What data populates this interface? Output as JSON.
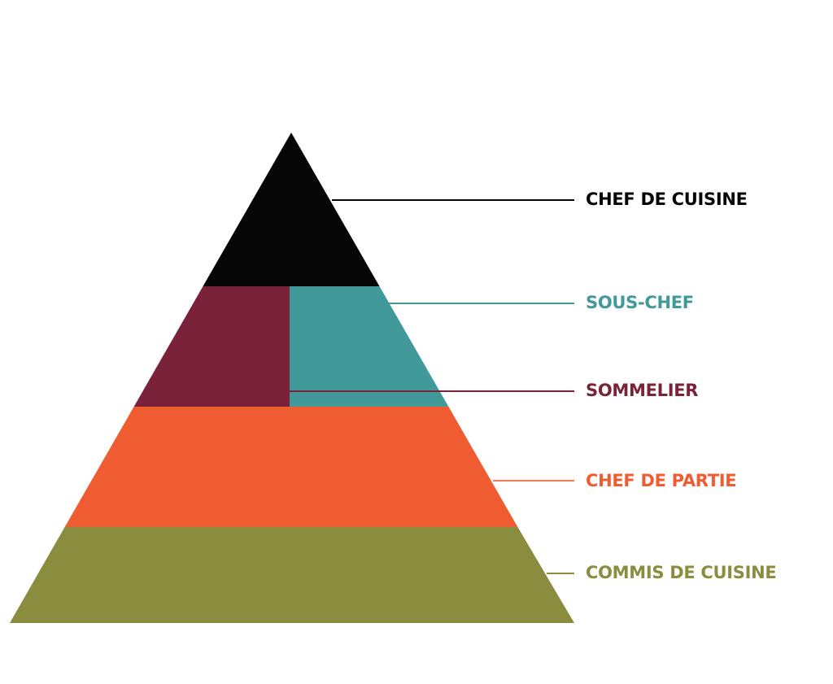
{
  "tiers": [
    {
      "label": "CHEF DE CUISINE"
    },
    {
      "label": "SOUS-CHEF"
    },
    {
      "label": "SOMMELIER"
    },
    {
      "label": "CHEF DE PARTIE"
    },
    {
      "label": "COMMIS DE CUISINE"
    }
  ]
}
